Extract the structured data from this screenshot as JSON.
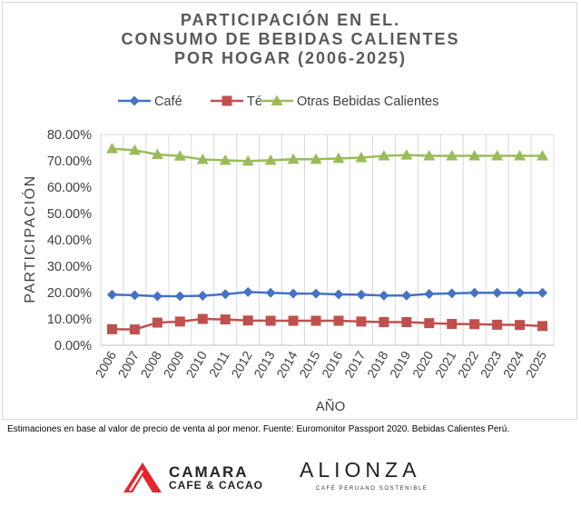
{
  "chart_data": {
    "type": "line",
    "title": [
      "PARTICIPACIÓN EN EL.",
      "CONSUMO DE BEBIDAS CALIENTES",
      "POR HOGAR (2006-2025)"
    ],
    "xlabel": "AÑO",
    "ylabel": "PARTICIPACIÓN",
    "ylim": [
      0,
      80
    ],
    "yticks": [
      "0.00%",
      "10.00%",
      "20.00%",
      "30.00%",
      "40.00%",
      "50.00%",
      "60.00%",
      "70.00%",
      "80.00%"
    ],
    "grid": "vertical",
    "legend": "top",
    "categories": [
      "2006",
      "2007",
      "2008",
      "2009",
      "2010",
      "2011",
      "2012",
      "2013",
      "2014",
      "2015",
      "2016",
      "2017",
      "2018",
      "2019",
      "2020",
      "2021",
      "2022",
      "2023",
      "2024",
      "2025"
    ],
    "series": [
      {
        "name": "Café",
        "color": "#4472c4",
        "marker": "diamond",
        "values": [
          19.2,
          19.0,
          18.6,
          18.6,
          18.8,
          19.4,
          20.2,
          19.9,
          19.6,
          19.6,
          19.3,
          19.2,
          18.9,
          18.9,
          19.5,
          19.7,
          19.9,
          19.9,
          19.9,
          19.9
        ]
      },
      {
        "name": "Té",
        "color": "#c0504d",
        "marker": "square",
        "values": [
          6.1,
          6.0,
          8.6,
          9.0,
          10.0,
          9.8,
          9.4,
          9.3,
          9.3,
          9.3,
          9.3,
          9.0,
          8.8,
          8.8,
          8.4,
          8.1,
          8.0,
          7.8,
          7.7,
          7.3
        ]
      },
      {
        "name": "Otras Bebidas Calientes",
        "color": "#9bbb59",
        "marker": "triangle",
        "values": [
          74.6,
          74.0,
          72.4,
          71.8,
          70.5,
          70.2,
          69.9,
          70.2,
          70.6,
          70.6,
          70.9,
          71.2,
          71.9,
          72.2,
          71.9,
          71.9,
          71.9,
          71.9,
          71.9,
          71.9
        ]
      }
    ]
  },
  "footnote": "Estimaciones en base al valor de precio de venta al por menor. Fuente: Euromonitor Passport 2020. Bebidas Calientes Perú.",
  "logos": {
    "camara_name": "CAMARA",
    "camara_sub": "CAFE & CACAO",
    "alianza_name": "ALIONZA",
    "alianza_sub": "CAFÉ PERUANO SOSTENIBLE"
  }
}
